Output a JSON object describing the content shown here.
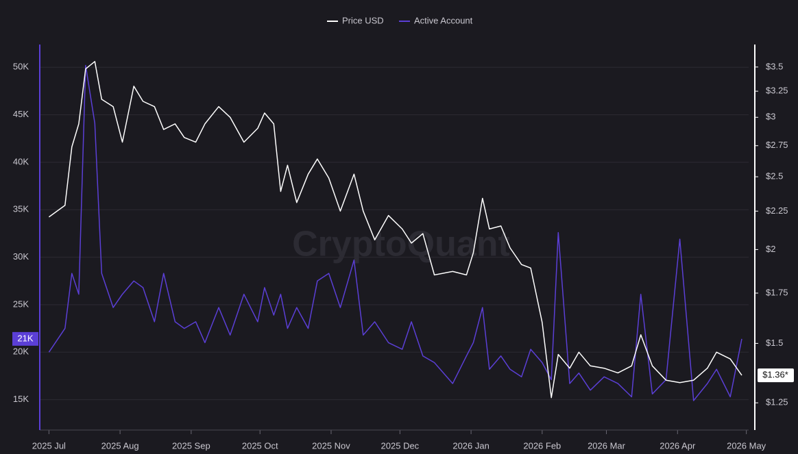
{
  "chart_data": {
    "type": "line",
    "watermark": "CryptoQuant",
    "x": [
      0,
      7,
      10,
      13,
      16,
      20,
      23,
      28,
      32,
      37,
      41,
      46,
      50,
      55,
      59,
      64,
      68,
      74,
      79,
      85,
      91,
      94,
      98,
      101,
      104,
      108,
      113,
      117,
      122,
      127,
      133,
      137,
      142,
      148,
      154,
      158,
      163,
      168,
      176,
      182,
      185,
      189,
      192,
      197,
      201,
      206,
      210,
      215,
      219,
      222,
      227,
      231,
      236,
      242,
      248,
      254,
      258,
      263,
      269,
      275,
      281,
      287,
      291,
      297,
      302
    ],
    "xlim": [
      -4,
      305
    ],
    "xticks": [
      {
        "value": 0,
        "label": "2025 Jul"
      },
      {
        "value": 31,
        "label": "2025 Aug"
      },
      {
        "value": 62,
        "label": "2025 Sep"
      },
      {
        "value": 92,
        "label": "2025 Oct"
      },
      {
        "value": 123,
        "label": "2025 Nov"
      },
      {
        "value": 153,
        "label": "2025 Dec"
      },
      {
        "value": 184,
        "label": "2026 Jan"
      },
      {
        "value": 215,
        "label": "2026 Feb"
      },
      {
        "value": 243,
        "label": "2026 Mar"
      },
      {
        "value": 274,
        "label": "2026 Apr"
      },
      {
        "value": 304,
        "label": "2026 May"
      }
    ],
    "ylim": [
      11800,
      52400
    ],
    "yticks": [
      {
        "value": 15000,
        "label": "15K"
      },
      {
        "value": 20000,
        "label": "20K"
      },
      {
        "value": 25000,
        "label": "25K"
      },
      {
        "value": 30000,
        "label": "30K"
      },
      {
        "value": 35000,
        "label": "35K"
      },
      {
        "value": 40000,
        "label": "40K"
      },
      {
        "value": 45000,
        "label": "45K"
      },
      {
        "value": 50000,
        "label": "50K"
      }
    ],
    "y2lim": [
      1.15,
      3.75
    ],
    "y2log": true,
    "y2ticks": [
      {
        "value": 1.25,
        "label": "$1.25"
      },
      {
        "value": 1.5,
        "label": "$1.5"
      },
      {
        "value": 1.75,
        "label": "$1.75"
      },
      {
        "value": 2,
        "label": "$2"
      },
      {
        "value": 2.25,
        "label": "$2.25"
      },
      {
        "value": 2.5,
        "label": "$2.5"
      },
      {
        "value": 2.75,
        "label": "$2.75"
      },
      {
        "value": 3,
        "label": "$3"
      },
      {
        "value": 3.25,
        "label": "$3.25"
      },
      {
        "value": 3.5,
        "label": "$3.5"
      }
    ],
    "grid": true,
    "series": [
      {
        "name": "Price USD",
        "color": "#ffffff",
        "axis": "y2",
        "current_label": "$1.36*",
        "values": [
          2.21,
          2.29,
          2.74,
          2.94,
          3.48,
          3.56,
          3.17,
          3.1,
          2.78,
          3.3,
          3.15,
          3.1,
          2.89,
          2.94,
          2.82,
          2.78,
          2.94,
          3.1,
          3.0,
          2.78,
          2.9,
          3.04,
          2.94,
          2.39,
          2.59,
          2.31,
          2.52,
          2.64,
          2.49,
          2.25,
          2.52,
          2.25,
          2.06,
          2.22,
          2.13,
          2.04,
          2.1,
          1.85,
          1.87,
          1.85,
          1.98,
          2.34,
          2.13,
          2.15,
          2.01,
          1.91,
          1.89,
          1.6,
          1.27,
          1.45,
          1.39,
          1.46,
          1.4,
          1.39,
          1.37,
          1.4,
          1.54,
          1.4,
          1.34,
          1.33,
          1.34,
          1.39,
          1.46,
          1.43,
          1.36
        ]
      },
      {
        "name": "Active Account",
        "color": "#5b3fd6",
        "axis": "y",
        "current_label": "21K",
        "values": [
          20000,
          22500,
          28300,
          26100,
          50200,
          44100,
          28300,
          24700,
          26100,
          27500,
          26800,
          23200,
          28300,
          23200,
          22500,
          23200,
          21000,
          24700,
          21800,
          26100,
          23200,
          26800,
          23900,
          26100,
          22500,
          24700,
          22500,
          27500,
          28300,
          24700,
          29700,
          21800,
          23200,
          21000,
          20300,
          23200,
          19600,
          18900,
          16700,
          19600,
          21000,
          24700,
          18200,
          19600,
          18200,
          17400,
          20300,
          18900,
          17100,
          32600,
          16700,
          17800,
          16000,
          17400,
          16700,
          15300,
          26100,
          15600,
          17100,
          31900,
          14900,
          16700,
          18200,
          15300,
          21400
        ]
      }
    ]
  }
}
